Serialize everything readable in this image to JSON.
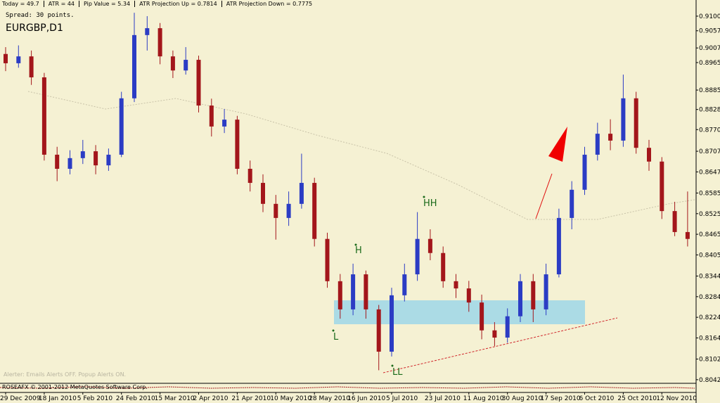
{
  "chart_data": {
    "type": "candlestick",
    "title": "EURGBP,D1",
    "subtitle": "Spread: 30 points.",
    "info": [
      "Today = 49.7",
      "ATR = 44",
      "Pip Value = 5.34",
      "ATR Projection Up = 0.7814",
      "ATR Projection Down = 0.7775"
    ],
    "annotations": [
      "H",
      "HH",
      "L",
      "LL"
    ],
    "footer_text": "Alerter: Emails Alerts OFF. Popup Alerts ON.",
    "copyright": "ROSEAFX © 2001-2012 MetaQuotes Software Corp.",
    "up_color": "#2b3cc4",
    "down_color": "#a3161b",
    "categories": [
      "29 Dec 2009",
      null,
      null,
      "18 Jan 2010",
      null,
      null,
      "5 Feb 2010",
      null,
      null,
      "24 Feb 2010",
      null,
      null,
      "15 Mar 2010",
      null,
      null,
      "2 Apr 2010",
      null,
      null,
      "21 Apr 2010",
      null,
      null,
      "10 May 2010",
      null,
      null,
      "28 May 2010",
      null,
      null,
      "16 Jun 2010",
      null,
      null,
      "5 Jul 2010",
      null,
      null,
      "23 Jul 2010",
      null,
      null,
      "11 Aug 2010",
      null,
      null,
      "30 Aug 2010",
      null,
      null,
      "17 Sep 2010",
      null,
      null,
      "6 Oct 2010",
      null,
      null,
      "25 Oct 2010",
      null,
      null,
      "12 Nov 2010",
      null,
      null
    ],
    "open": [
      0.899,
      0.8963,
      0.8983,
      0.8922,
      0.8697,
      0.8656,
      0.8687,
      0.8707,
      0.8666,
      0.8697,
      0.8861,
      0.9045,
      0.9065,
      0.8983,
      0.8942,
      0.8973,
      0.884,
      0.8779,
      0.8799,
      0.8656,
      0.8615,
      0.8554,
      0.8513,
      0.8554,
      0.8615,
      0.8452,
      0.8329,
      0.8247,
      0.8349,
      0.8247,
      0.8124,
      0.8288,
      0.8349,
      0.8452,
      0.8411,
      0.8329,
      0.8308,
      0.8267,
      0.8186,
      0.8165,
      0.8227,
      0.8329,
      0.8247,
      0.8349,
      0.8513,
      0.8595,
      0.8697,
      0.8758,
      0.8738,
      0.8861,
      0.8717,
      0.8677,
      0.8533,
      0.8472
    ],
    "high": [
      0.901,
      0.9015,
      0.9,
      0.8935,
      0.872,
      0.871,
      0.874,
      0.8725,
      0.8715,
      0.888,
      0.911,
      0.91,
      0.908,
      0.9,
      0.901,
      0.8985,
      0.886,
      0.883,
      0.881,
      0.868,
      0.864,
      0.858,
      0.859,
      0.87,
      0.863,
      0.847,
      0.835,
      0.838,
      0.836,
      0.826,
      0.831,
      0.838,
      0.853,
      0.848,
      0.843,
      0.835,
      0.833,
      0.829,
      0.821,
      0.825,
      0.835,
      0.835,
      0.838,
      0.854,
      0.862,
      0.872,
      0.879,
      0.88,
      0.893,
      0.888,
      0.874,
      0.869,
      0.856,
      0.859
    ],
    "low": [
      0.894,
      0.895,
      0.89,
      0.868,
      0.862,
      0.864,
      0.867,
      0.864,
      0.865,
      0.869,
      0.885,
      0.9,
      0.896,
      0.892,
      0.893,
      0.882,
      0.875,
      0.876,
      0.864,
      0.859,
      0.853,
      0.845,
      0.849,
      0.854,
      0.843,
      0.831,
      0.822,
      0.823,
      0.822,
      0.807,
      0.811,
      0.827,
      0.833,
      0.839,
      0.831,
      0.828,
      0.824,
      0.816,
      0.814,
      0.815,
      0.821,
      0.821,
      0.823,
      0.834,
      0.848,
      0.858,
      0.868,
      0.871,
      0.872,
      0.87,
      0.865,
      0.851,
      0.846,
      0.843
    ],
    "close": [
      0.8963,
      0.8983,
      0.8922,
      0.8697,
      0.8656,
      0.8687,
      0.8707,
      0.8666,
      0.8697,
      0.8861,
      0.9045,
      0.9065,
      0.8983,
      0.8942,
      0.8973,
      0.884,
      0.8779,
      0.8799,
      0.8656,
      0.8615,
      0.8554,
      0.8513,
      0.8554,
      0.8615,
      0.8452,
      0.8329,
      0.8247,
      0.8349,
      0.8247,
      0.8124,
      0.8288,
      0.8349,
      0.8452,
      0.8411,
      0.8329,
      0.8308,
      0.8267,
      0.8186,
      0.8165,
      0.8227,
      0.8329,
      0.8247,
      0.8349,
      0.8513,
      0.8595,
      0.8697,
      0.8758,
      0.8738,
      0.8861,
      0.8717,
      0.8677,
      0.8533,
      0.8472,
      0.8452
    ],
    "ylim": [
      0.8032,
      0.9147
    ],
    "yticks": [
      {
        "value": 0.91,
        "label": "0.91000"
      },
      {
        "value": 0.90575,
        "label": "0.90575"
      },
      {
        "value": 0.90075,
        "label": "0.90075"
      },
      {
        "value": 0.8965,
        "label": "0.89650"
      },
      {
        "value": 0.8885,
        "label": "0.88850"
      },
      {
        "value": 0.88285,
        "label": "0.88285"
      },
      {
        "value": 0.877,
        "label": "0.87700"
      },
      {
        "value": 0.8707,
        "label": "0.87070"
      },
      {
        "value": 0.8647,
        "label": "0.86470"
      },
      {
        "value": 0.85855,
        "label": "0.85855"
      },
      {
        "value": 0.85255,
        "label": "0.85255"
      },
      {
        "value": 0.84655,
        "label": "0.84655"
      },
      {
        "value": 0.84055,
        "label": "0.84055"
      },
      {
        "value": 0.8344,
        "label": "0.83440"
      },
      {
        "value": 0.8284,
        "label": "0.82840"
      },
      {
        "value": 0.8224,
        "label": "0.82240"
      },
      {
        "value": 0.8164,
        "label": "0.81640"
      },
      {
        "value": 0.81025,
        "label": "0.81025"
      },
      {
        "value": 0.80425,
        "label": "0.80425"
      }
    ]
  }
}
